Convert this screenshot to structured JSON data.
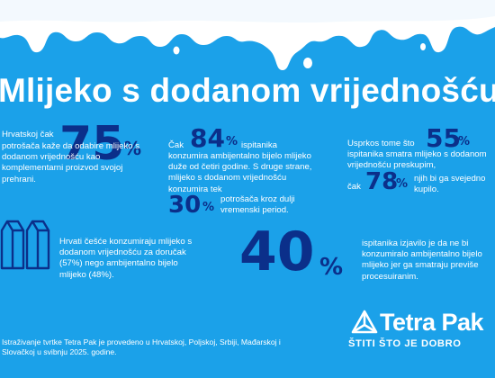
{
  "title": "Mlijeko s dodanom vrijednošću",
  "stat1": {
    "number": "75",
    "percent": "%",
    "lead": "Hrvatskoj čak",
    "text": "potrošača kaže da odabire mlijeko s dodanom vrijednošću kao komplementarni proizvod svojoj prehrani."
  },
  "stat2": {
    "lead": "Čak",
    "number": "84",
    "percent": "%",
    "text_after": "ispitanika",
    "text": "konzumira ambijentalno bijelo mlijeko duže od četiri godine. S druge strane, mlijeko s dodanom vrijednošću konzumira tek",
    "number2": "30",
    "percent2": "%",
    "text2": "potrošača kroz dulji vremenski period."
  },
  "stat3": {
    "lead": "Usprkos tome što",
    "number": "55",
    "percent": "%",
    "text": "ispitanika smatra mlijeko s dodanom vrijednošću preskupim,",
    "lead2": "čak",
    "number2": "78",
    "percent2": "%",
    "text2": "njih bi ga svejedno kupilo."
  },
  "stat4": {
    "text": "Hrvati češće konzumiraju mlijeko s dodanom vrijednošću za doručak (57%) nego ambijentalno bijelo mlijeko (48%)."
  },
  "stat5": {
    "number": "40",
    "percent": "%",
    "text": "ispitanika izjavilo je da ne bi konzumiralo ambijentalno bijelo mlijeko jer ga smatraju previše procesuiranim."
  },
  "footnote": "Istraživanje tvrtke Tetra Pak je provedeno u Hrvatskoj, Poljskoj, Srbiji, Mađarskoj i Slovačkoj u svibnju 2025. godine.",
  "brand": {
    "name": "Tetra Pak",
    "slogan": "ŠTITI ŠTO JE DOBRO",
    "icon": "tetra-pak-logo-icon"
  },
  "colors": {
    "background": "#1ba1e9",
    "accent_dark": "#0b2f8a",
    "milk": "#ffffff",
    "text": "#ffffff"
  }
}
